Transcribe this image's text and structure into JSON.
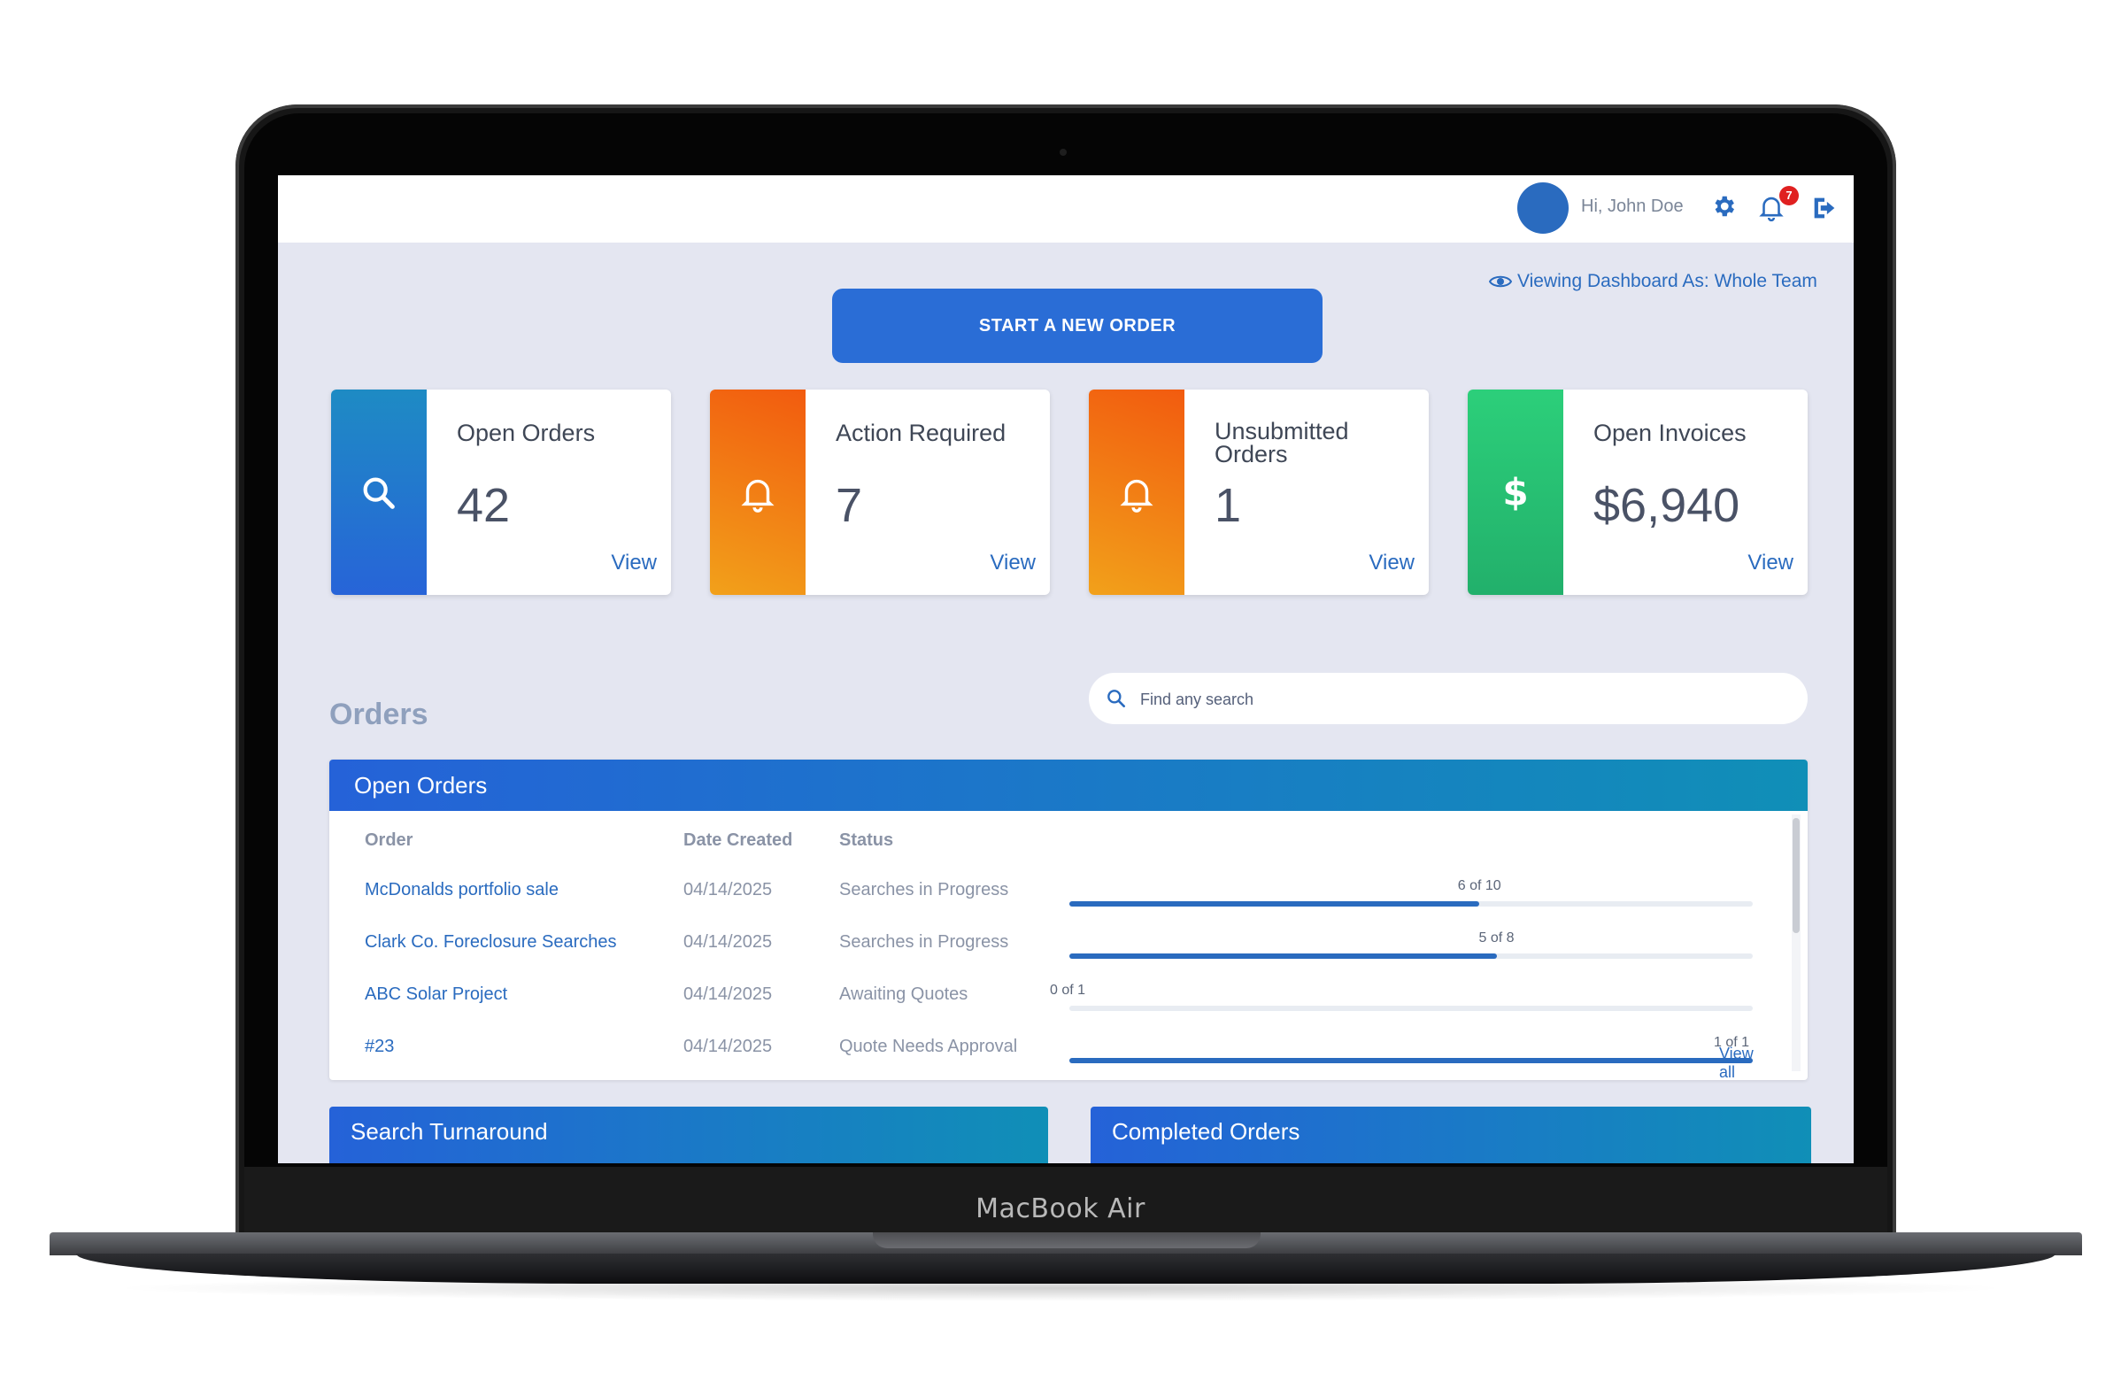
{
  "device": {
    "brand_label": "MacBook Air"
  },
  "header": {
    "greeting": "Hi, John Doe",
    "notification_count": "7"
  },
  "viewing": {
    "label": "Viewing Dashboard As: Whole Team"
  },
  "actions": {
    "start_order": "START A NEW ORDER"
  },
  "cards": [
    {
      "title": "Open Orders",
      "value": "42",
      "link": "View",
      "icon": "search-icon",
      "color": "#2764d8"
    },
    {
      "title": "Action Required",
      "value": "7",
      "link": "View",
      "icon": "bell-icon",
      "color": "#f2791a"
    },
    {
      "title": "Unsubmitted Orders",
      "value": "1",
      "link": "View",
      "icon": "bell-icon",
      "color": "#f2791a"
    },
    {
      "title": "Open Invoices",
      "value": "$6,940",
      "link": "View",
      "icon": "dollar-icon",
      "color": "#2ccf7a"
    }
  ],
  "orders": {
    "section_title": "Orders",
    "search_placeholder": "Find any search",
    "panel_title": "Open Orders",
    "columns": [
      "Order",
      "Date Created",
      "Status"
    ],
    "rows": [
      {
        "order": "McDonalds portfolio sale",
        "date": "04/14/2025",
        "status": "Searches in Progress",
        "progress_label": "6 of 10",
        "progress": 0.6
      },
      {
        "order": "Clark Co. Foreclosure Searches",
        "date": "04/14/2025",
        "status": "Searches in Progress",
        "progress_label": "5 of 8",
        "progress": 0.625
      },
      {
        "order": "ABC Solar Project",
        "date": "04/14/2025",
        "status": "Awaiting Quotes",
        "progress_label": "0 of 1",
        "progress": 0
      },
      {
        "order": "#23",
        "date": "04/14/2025",
        "status": "Quote Needs Approval",
        "progress_label": "1 of 1",
        "progress": 1
      }
    ],
    "view_all": "View all"
  },
  "panels": {
    "search_turnaround": "Search Turnaround",
    "completed_orders": "Completed Orders"
  },
  "colors": {
    "accent": "#2a6dd6",
    "link": "#2a6bbf",
    "background": "#e4e6f1"
  }
}
